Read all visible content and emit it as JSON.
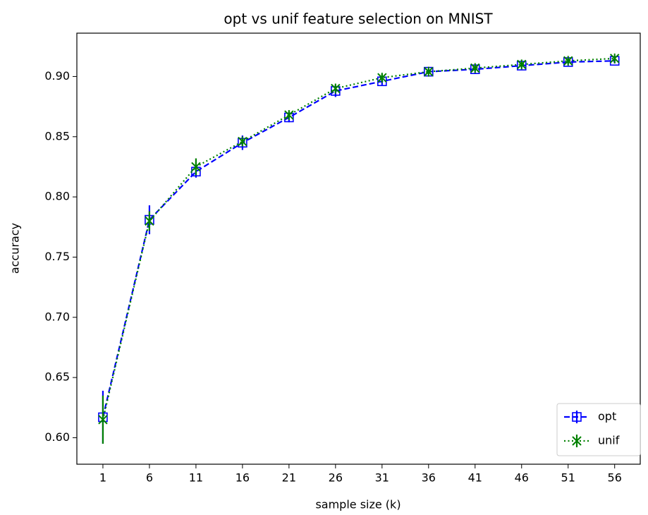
{
  "chart_data": {
    "type": "errorbar-line",
    "title": "opt vs unif feature selection on MNIST",
    "xlabel": "sample size (k)",
    "ylabel": "accuracy",
    "x": [
      1,
      6,
      11,
      16,
      21,
      26,
      31,
      36,
      41,
      46,
      51,
      56
    ],
    "series": [
      {
        "name": "opt",
        "color": "#0000ff",
        "linestyle": "dashed",
        "marker": "square",
        "values": [
          0.617,
          0.781,
          0.821,
          0.845,
          0.866,
          0.888,
          0.896,
          0.904,
          0.906,
          0.909,
          0.912,
          0.913
        ],
        "errors": [
          0.022,
          0.012,
          0.005,
          0.006,
          0.004,
          0.005,
          0.003,
          0.002,
          0.002,
          0.002,
          0.002,
          0.002
        ]
      },
      {
        "name": "unif",
        "color": "#008000",
        "linestyle": "dotted",
        "marker": "x",
        "values": [
          0.615,
          0.78,
          0.825,
          0.846,
          0.868,
          0.89,
          0.899,
          0.904,
          0.907,
          0.91,
          0.913,
          0.915
        ],
        "errors": [
          0.02,
          0.008,
          0.007,
          0.004,
          0.003,
          0.003,
          0.003,
          0.002,
          0.002,
          0.002,
          0.002,
          0.002
        ]
      }
    ],
    "xlim": [
      -1.8,
      58.75
    ],
    "xticks": [
      1,
      6,
      11,
      16,
      21,
      26,
      31,
      36,
      41,
      46,
      51,
      56
    ],
    "ylim": [
      0.578,
      0.936
    ],
    "yticks": [
      {
        "value": 0.6,
        "label": "0.60"
      },
      {
        "value": 0.65,
        "label": "0.65"
      },
      {
        "value": 0.7,
        "label": "0.70"
      },
      {
        "value": 0.75,
        "label": "0.75"
      },
      {
        "value": 0.8,
        "label": "0.80"
      },
      {
        "value": 0.85,
        "label": "0.85"
      },
      {
        "value": 0.9,
        "label": "0.90"
      }
    ],
    "grid": false,
    "legend": "lower right"
  }
}
